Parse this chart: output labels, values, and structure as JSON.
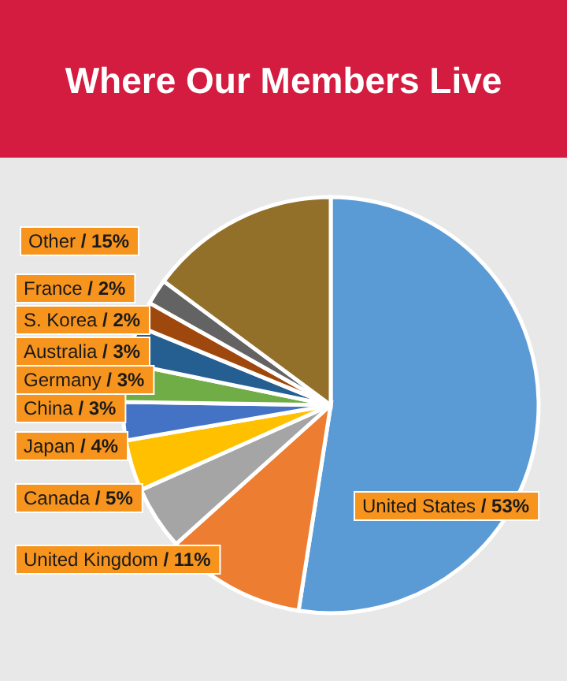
{
  "chart_data": {
    "type": "pie",
    "title": "Where Our Members Live",
    "categories": [
      "United States",
      "United Kingdom",
      "Canada",
      "Japan",
      "China",
      "Germany",
      "Australia",
      "S. Korea",
      "France",
      "Other"
    ],
    "values": [
      53,
      11,
      5,
      4,
      3,
      3,
      3,
      2,
      2,
      15
    ],
    "value_labels": [
      "/ 53%",
      "/ 11%",
      "/ 5%",
      "/ 4%",
      "/ 3%",
      "/ 3%",
      "/ 3%",
      "/ 2%",
      "/ 2%",
      "/ 15%"
    ],
    "colors": [
      "#5b9bd5",
      "#ed7d31",
      "#a5a5a5",
      "#ffc000",
      "#4472c4",
      "#70ad47",
      "#255e91",
      "#9e480e",
      "#636363",
      "#93702a"
    ]
  }
}
